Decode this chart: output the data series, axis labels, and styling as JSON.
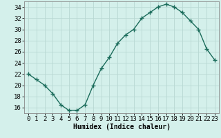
{
  "x": [
    0,
    1,
    2,
    3,
    4,
    5,
    6,
    7,
    8,
    9,
    10,
    11,
    12,
    13,
    14,
    15,
    16,
    17,
    18,
    19,
    20,
    21,
    22,
    23
  ],
  "y": [
    22,
    21,
    20,
    18.5,
    16.5,
    15.5,
    15.5,
    16.5,
    20,
    23,
    25,
    27.5,
    29,
    30,
    32,
    33,
    34,
    34.5,
    34,
    33,
    31.5,
    30,
    26.5,
    24.5
  ],
  "line_color": "#1a6b5a",
  "marker": "+",
  "marker_size": 4,
  "marker_edge_width": 1.0,
  "bg_color": "#d4f0eb",
  "grid_major_color": "#b8d8d2",
  "grid_minor_color": "#c8e8e2",
  "xlabel": "Humidex (Indice chaleur)",
  "ylim": [
    15,
    35
  ],
  "yticks": [
    16,
    18,
    20,
    22,
    24,
    26,
    28,
    30,
    32,
    34
  ],
  "xlim": [
    -0.5,
    23.5
  ],
  "xticks": [
    0,
    1,
    2,
    3,
    4,
    5,
    6,
    7,
    8,
    9,
    10,
    11,
    12,
    13,
    14,
    15,
    16,
    17,
    18,
    19,
    20,
    21,
    22,
    23
  ],
  "xlabel_fontsize": 7,
  "tick_fontsize": 6.5,
  "line_width": 1.0,
  "spine_color": "#888888"
}
